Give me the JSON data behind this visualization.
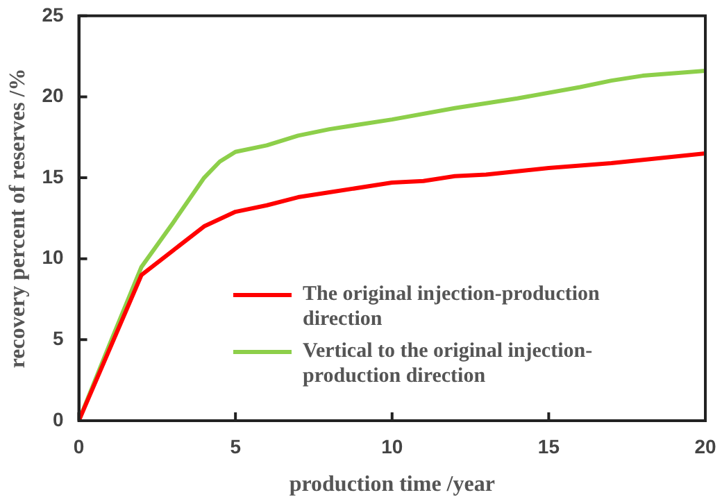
{
  "chart_data": {
    "type": "line",
    "xlabel": "production time /year",
    "ylabel": "recovery percent of reserves /%",
    "xlim": [
      0,
      20
    ],
    "xticks": [
      0,
      5,
      10,
      15,
      20
    ],
    "ylim": [
      0,
      25
    ],
    "yticks": [
      0,
      5,
      10,
      15,
      20,
      25
    ],
    "grid": false,
    "legend": "bottom right",
    "marker": "none",
    "line_style": "solid",
    "series": [
      {
        "name": "The original injection-production direction",
        "color": "#ff0000",
        "x": [
          0,
          1,
          2,
          3,
          4,
          5,
          6,
          7,
          8,
          10,
          11,
          12,
          13,
          14,
          15,
          17,
          20
        ],
        "values": [
          0,
          4.5,
          9.0,
          10.5,
          12.0,
          12.9,
          13.3,
          13.8,
          14.1,
          14.7,
          14.8,
          15.1,
          15.2,
          15.4,
          15.6,
          15.9,
          16.5
        ]
      },
      {
        "name": "Vertical to the original injection-production direction",
        "color": "#8dcf4a",
        "x": [
          0,
          1,
          2,
          3,
          4,
          4.5,
          5,
          6,
          7,
          8,
          10,
          12,
          14,
          16,
          17,
          18,
          20
        ],
        "values": [
          0,
          4.8,
          9.5,
          12.2,
          15.0,
          16.0,
          16.6,
          17.0,
          17.6,
          18.0,
          18.6,
          19.3,
          19.9,
          20.6,
          21.0,
          21.3,
          21.6
        ]
      }
    ]
  }
}
